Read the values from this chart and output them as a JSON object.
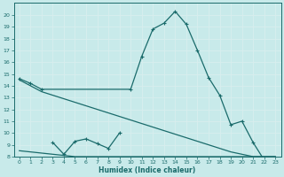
{
  "bg_color": "#c8eaea",
  "grid_color": "#d8eeee",
  "line_color": "#1a6b6b",
  "xlabel": "Humidex (Indice chaleur)",
  "xlim": [
    -0.5,
    23.5
  ],
  "ylim": [
    8,
    21
  ],
  "yticks": [
    8,
    9,
    10,
    11,
    12,
    13,
    14,
    15,
    16,
    17,
    18,
    19,
    20
  ],
  "xticks": [
    0,
    1,
    2,
    3,
    4,
    5,
    6,
    7,
    8,
    9,
    10,
    11,
    12,
    13,
    14,
    15,
    16,
    17,
    18,
    19,
    20,
    21,
    22,
    23
  ],
  "line1_x": [
    0,
    1,
    2,
    10,
    11,
    12,
    13,
    14,
    15,
    16,
    17,
    18,
    19,
    20,
    21,
    22,
    23
  ],
  "line1_y": [
    14.6,
    14.2,
    13.7,
    13.7,
    16.5,
    18.8,
    19.3,
    20.3,
    19.2,
    17.0,
    14.7,
    13.2,
    10.7,
    11.0,
    9.2,
    7.7,
    7.7
  ],
  "line2_x": [
    0,
    1,
    2,
    3,
    4,
    5,
    6,
    7,
    8,
    9,
    10,
    11,
    12,
    13,
    14,
    15,
    16,
    17,
    18,
    19,
    20,
    21,
    22,
    23
  ],
  "line2_y": [
    14.5,
    14.0,
    13.5,
    13.2,
    12.9,
    12.6,
    12.3,
    12.0,
    11.7,
    11.4,
    11.1,
    10.8,
    10.5,
    10.2,
    9.9,
    9.6,
    9.3,
    9.0,
    8.7,
    8.4,
    8.2,
    8.0,
    8.0,
    8.0
  ],
  "line3_x": [
    0,
    1,
    2,
    3,
    4,
    5,
    6,
    7,
    8,
    9,
    10,
    11,
    12,
    13,
    14,
    15,
    16,
    17,
    18,
    19,
    20,
    21,
    22,
    23
  ],
  "line3_y": [
    8.5,
    8.4,
    8.3,
    8.2,
    8.1,
    8.0,
    8.0,
    8.0,
    8.0,
    8.0,
    8.0,
    8.0,
    8.0,
    8.0,
    8.0,
    8.0,
    8.0,
    8.0,
    8.0,
    8.0,
    8.0,
    8.0,
    8.0,
    8.0
  ],
  "line4_x": [
    3,
    4,
    5,
    6,
    7,
    8,
    9
  ],
  "line4_y": [
    9.2,
    8.2,
    9.3,
    9.5,
    9.1,
    8.7,
    10.0
  ],
  "markersize": 3,
  "linewidth": 0.9
}
